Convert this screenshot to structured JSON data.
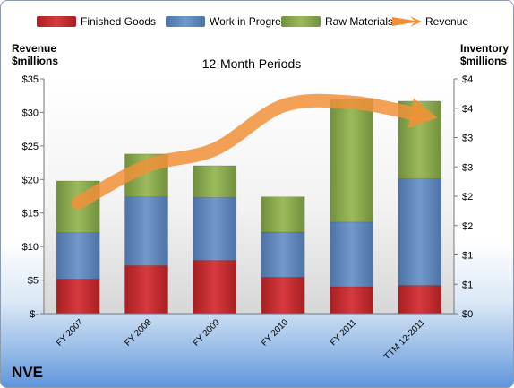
{
  "company": "NVE",
  "chart_data": {
    "type": "bar",
    "stacked": true,
    "title": "12-Month Periods",
    "categories": [
      "FY 2007",
      "FY 2008",
      "FY 2009",
      "FY 2010",
      "FY 2011",
      "TTM 12-2011"
    ],
    "left_axis": {
      "label_line1": "Revenue",
      "label_line2": "$millions",
      "ylim": [
        0,
        35
      ],
      "tick_labels": [
        "$-",
        "$5",
        "$10",
        "$15",
        "$20",
        "$25",
        "$30",
        "$35"
      ]
    },
    "right_axis": {
      "label_line1": "Inventory",
      "label_line2": "$millions",
      "ylim": [
        0,
        4
      ],
      "tick_labels": [
        "$0",
        "$1",
        "$1",
        "$2",
        "$2",
        "$3",
        "$3",
        "$4",
        "$4"
      ]
    },
    "series": [
      {
        "name": "Finished Goods",
        "axis": "right",
        "color": "#c0282d",
        "values": [
          0.59,
          0.82,
          0.91,
          0.62,
          0.46,
          0.48
        ]
      },
      {
        "name": "Work in Progress",
        "axis": "right",
        "color": "#5f86bb",
        "values": [
          0.79,
          1.17,
          1.07,
          0.77,
          1.1,
          1.82
        ]
      },
      {
        "name": "Raw Materials",
        "axis": "right",
        "color": "#8aa84d",
        "values": [
          0.88,
          0.73,
          0.54,
          0.6,
          2.09,
          1.32
        ]
      },
      {
        "name": "Revenue",
        "axis": "left",
        "type": "arrow-line",
        "color": "#f0913a",
        "values": [
          16.5,
          22.0,
          24.5,
          31.0,
          31.5,
          29.8
        ]
      }
    ],
    "legend_position": "top",
    "grid": false
  }
}
